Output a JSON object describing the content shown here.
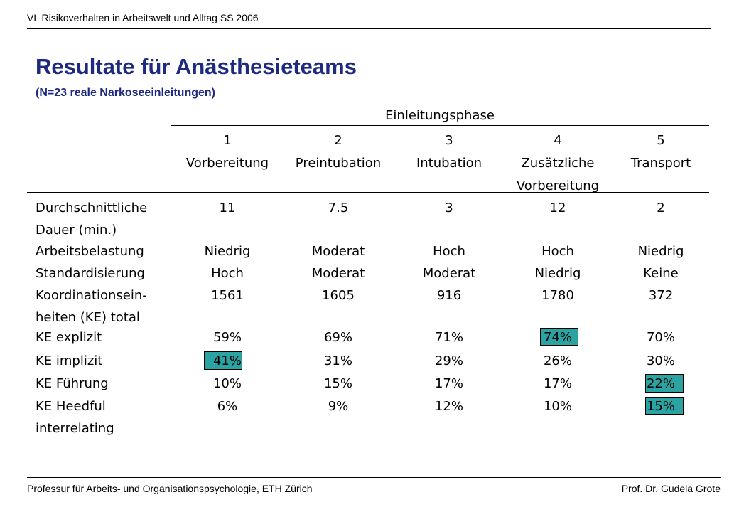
{
  "header": {
    "course": "VL Risikoverhalten in Arbeitswelt und Alltag SS 2006"
  },
  "slide": {
    "title": "Resultate für Anästhesieteams",
    "subtitle": "(N=23 reale Narkoseeinleitungen)"
  },
  "table": {
    "group_header": "Einleitungsphase",
    "phases": [
      {
        "num": "1",
        "name": "Vorbereitung",
        "name2": ""
      },
      {
        "num": "2",
        "name": "Preintubation",
        "name2": ""
      },
      {
        "num": "3",
        "name": "Intubation",
        "name2": ""
      },
      {
        "num": "4",
        "name": "Zusätzliche",
        "name2": "Vorbereitung"
      },
      {
        "num": "5",
        "name": "Transport",
        "name2": ""
      }
    ],
    "rows": [
      {
        "label": "Durchschnittliche",
        "values": [
          "11",
          "7.5",
          "3",
          "12",
          "2"
        ]
      },
      {
        "label": "Dauer (min.)",
        "values": [
          "",
          "",
          "",
          "",
          ""
        ]
      },
      {
        "label": "Arbeitsbelastung",
        "values": [
          "Niedrig",
          "Moderat",
          "Hoch",
          "Hoch",
          "Niedrig"
        ]
      },
      {
        "label": "Standardisierung",
        "values": [
          "Hoch",
          "Moderat",
          "Moderat",
          "Niedrig",
          "Keine"
        ]
      },
      {
        "label": "Koordinationsein-",
        "values": [
          "1561",
          "1605",
          "916",
          "1780",
          "372"
        ]
      },
      {
        "label": "heiten (KE) total",
        "values": [
          "",
          "",
          "",
          "",
          ""
        ]
      },
      {
        "label": "KE explizit",
        "values": [
          "59%",
          "69%",
          "71%",
          "74%",
          "70%"
        ]
      },
      {
        "label": "KE implizit",
        "values": [
          "41%",
          "31%",
          "29%",
          "26%",
          "30%"
        ]
      },
      {
        "label": "KE Führung",
        "values": [
          "10%",
          "15%",
          "17%",
          "17%",
          "22%"
        ]
      },
      {
        "label": "KE Heedful",
        "values": [
          "6%",
          "9%",
          "12%",
          "10%",
          "15%"
        ]
      },
      {
        "label": "interrelating",
        "values": [
          "",
          "",
          "",
          "",
          ""
        ]
      }
    ],
    "highlight_color": "#2ba3a3"
  },
  "footer": {
    "left": "Professur für Arbeits- und Organisationspsychologie, ETH Zürich",
    "right": "Prof. Dr. Gudela Grote"
  },
  "colors": {
    "title": "#1e2a80"
  }
}
